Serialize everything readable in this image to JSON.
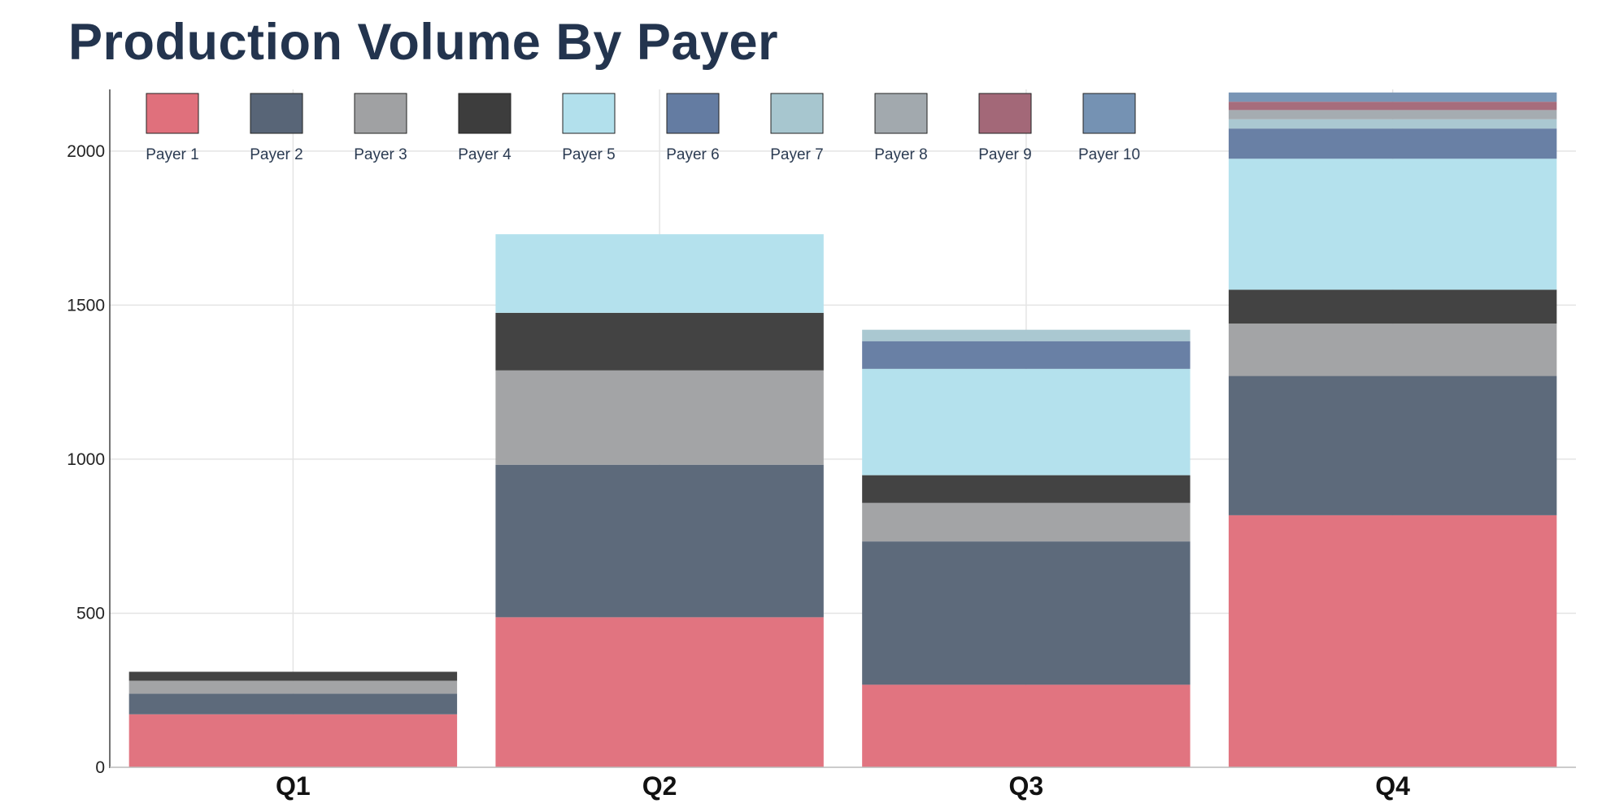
{
  "chart_data": {
    "type": "bar",
    "stacked": true,
    "title": "Production Volume By Payer",
    "xlabel": "",
    "ylabel": "",
    "categories": [
      "Q1",
      "Q2",
      "Q3",
      "Q4"
    ],
    "y_ticks": [
      "0",
      "500",
      "1000",
      "1500",
      "2000"
    ],
    "ylim": [
      0,
      2200
    ],
    "grid": true,
    "legend_position": "top",
    "series": [
      {
        "name": "Payer 1",
        "color": "#e0707c",
        "values": [
          172,
          487,
          268,
          818
        ]
      },
      {
        "name": "Payer 2",
        "color": "#586577",
        "values": [
          67,
          495,
          465,
          452
        ]
      },
      {
        "name": "Payer 3",
        "color": "#a0a1a3",
        "values": [
          42,
          306,
          125,
          170
        ]
      },
      {
        "name": "Payer 4",
        "color": "#3d3d3d",
        "values": [
          29,
          187,
          90,
          110
        ]
      },
      {
        "name": "Payer 5",
        "color": "#b2e0ec",
        "values": [
          0,
          255,
          345,
          425
        ]
      },
      {
        "name": "Payer 6",
        "color": "#647ca2",
        "values": [
          0,
          0,
          90,
          98
        ]
      },
      {
        "name": "Payer 7",
        "color": "#a7c6cf",
        "values": [
          0,
          0,
          37,
          30
        ]
      },
      {
        "name": "Payer 8",
        "color": "#a2a9ae",
        "values": [
          0,
          0,
          0,
          30
        ]
      },
      {
        "name": "Payer 9",
        "color": "#a36878",
        "values": [
          0,
          0,
          0,
          27
        ]
      },
      {
        "name": "Payer 10",
        "color": "#7592b3",
        "values": [
          0,
          0,
          0,
          30
        ]
      }
    ]
  }
}
